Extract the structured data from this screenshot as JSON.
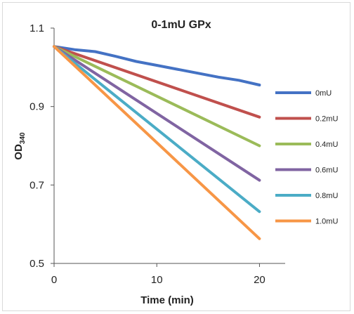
{
  "chart_data": {
    "type": "line",
    "title": "0-1mU GPx",
    "xlabel": "Time (min)",
    "ylabel": "OD",
    "ylabel_subscript": "340",
    "xlim": [
      0,
      22.5
    ],
    "ylim": [
      0.5,
      1.1
    ],
    "xticks": [
      0,
      10,
      20
    ],
    "xtick_labels": [
      "0",
      "10",
      "20"
    ],
    "yticks": [
      0.5,
      0.7,
      0.9,
      1.1
    ],
    "ytick_labels": [
      "0.5",
      "0.7",
      "0.9",
      "1.1"
    ],
    "grid": false,
    "legend_position": "right",
    "series": [
      {
        "name": "0mU",
        "color": "#4472C4",
        "x": [
          0,
          2,
          4,
          6,
          8,
          10,
          12,
          14,
          16,
          18,
          20
        ],
        "y": [
          1.053,
          1.045,
          1.04,
          1.028,
          1.015,
          1.005,
          0.995,
          0.985,
          0.975,
          0.967,
          0.955
        ]
      },
      {
        "name": "0.2mU",
        "color": "#C0504D",
        "x": [
          0,
          20
        ],
        "y": [
          1.053,
          0.873
        ]
      },
      {
        "name": "0.4mU",
        "color": "#9BBB59",
        "x": [
          0,
          20
        ],
        "y": [
          1.053,
          0.8
        ]
      },
      {
        "name": "0.6mU",
        "color": "#8064A2",
        "x": [
          0,
          20
        ],
        "y": [
          1.053,
          0.712
        ]
      },
      {
        "name": "0.8mU",
        "color": "#4BACC6",
        "x": [
          0,
          20
        ],
        "y": [
          1.053,
          0.632
        ]
      },
      {
        "name": "1.0mU",
        "color": "#F79646",
        "x": [
          0,
          20
        ],
        "y": [
          1.053,
          0.563
        ]
      }
    ]
  }
}
